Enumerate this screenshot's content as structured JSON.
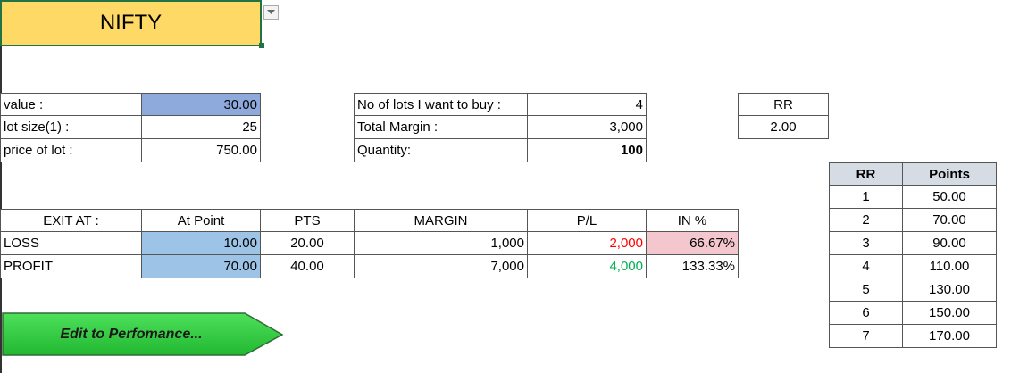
{
  "title_cell": {
    "text": "NIFTY",
    "bg": "#ffd966"
  },
  "inputs": {
    "value_label": "value :",
    "value": "30.00",
    "lot_size_label": "lot size(1) :",
    "lot_size": "25",
    "price_label": "price of lot :",
    "price": "750.00"
  },
  "lots": {
    "lots_label": "No of lots I want to buy :",
    "lots": "4",
    "margin_label": "Total Margin :",
    "margin": "3,000",
    "qty_label": "Quantity:",
    "qty": "100"
  },
  "rr_box": {
    "label": "RR",
    "value": "2.00"
  },
  "exit_table": {
    "headers": [
      "EXIT AT :",
      "At Point",
      "PTS",
      "MARGIN",
      "P/L",
      "IN %"
    ],
    "rows": [
      [
        "LOSS",
        "10.00",
        "20.00",
        "1,000",
        "2,000",
        "66.67%"
      ],
      [
        "PROFIT",
        "70.00",
        "40.00",
        "7,000",
        "4,000",
        "133.33%"
      ]
    ]
  },
  "rr_table": {
    "headers": [
      "RR",
      "Points"
    ],
    "rows": [
      [
        "1",
        "50.00"
      ],
      [
        "2",
        "70.00"
      ],
      [
        "3",
        "90.00"
      ],
      [
        "4",
        "110.00"
      ],
      [
        "5",
        "130.00"
      ],
      [
        "6",
        "150.00"
      ],
      [
        "7",
        "170.00"
      ]
    ]
  },
  "button": {
    "label": "Edit to Perfomance...",
    "bg": "#2ecc40"
  },
  "colors": {
    "loss": "#ff0000",
    "profit": "#00b050",
    "input_blue": "#8ea9db"
  },
  "icons": {
    "dropdown": "chevron-down-icon"
  }
}
